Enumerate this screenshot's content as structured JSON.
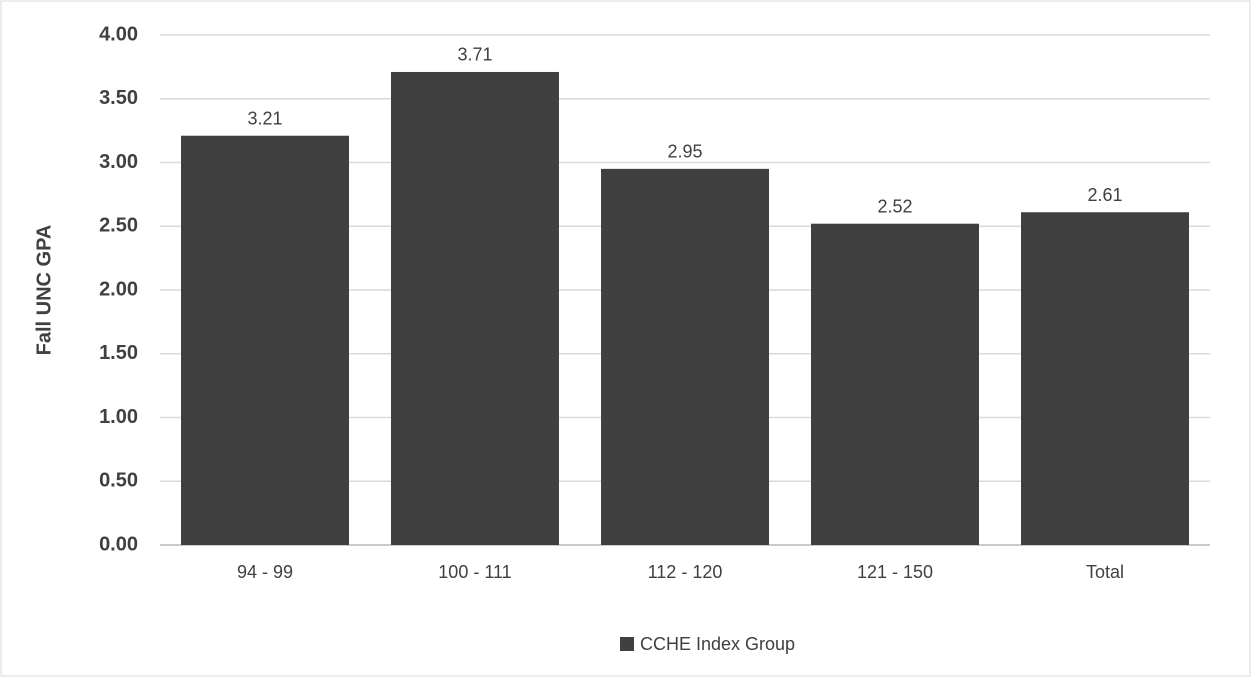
{
  "chart_data": {
    "type": "bar",
    "y_label": "Fall UNC GPA",
    "legend": "CCHE Index Group",
    "categories": [
      "94 - 99",
      "100 - 111",
      "112 - 120",
      "121 - 150",
      "Total"
    ],
    "values": [
      3.21,
      3.71,
      2.95,
      2.52,
      2.61
    ],
    "color": "#404040",
    "ylim": [
      0,
      4
    ],
    "yticks": [
      {
        "value": 0,
        "label": "0.00"
      },
      {
        "value": 0.5,
        "label": "0.50"
      },
      {
        "value": 1,
        "label": "1.00"
      },
      {
        "value": 1.5,
        "label": "1.50"
      },
      {
        "value": 2,
        "label": "2.00"
      },
      {
        "value": 2.5,
        "label": "2.50"
      },
      {
        "value": 3,
        "label": "3.00"
      },
      {
        "value": 3.5,
        "label": "3.50"
      },
      {
        "value": 4,
        "label": "4.00"
      }
    ],
    "grid": true
  }
}
